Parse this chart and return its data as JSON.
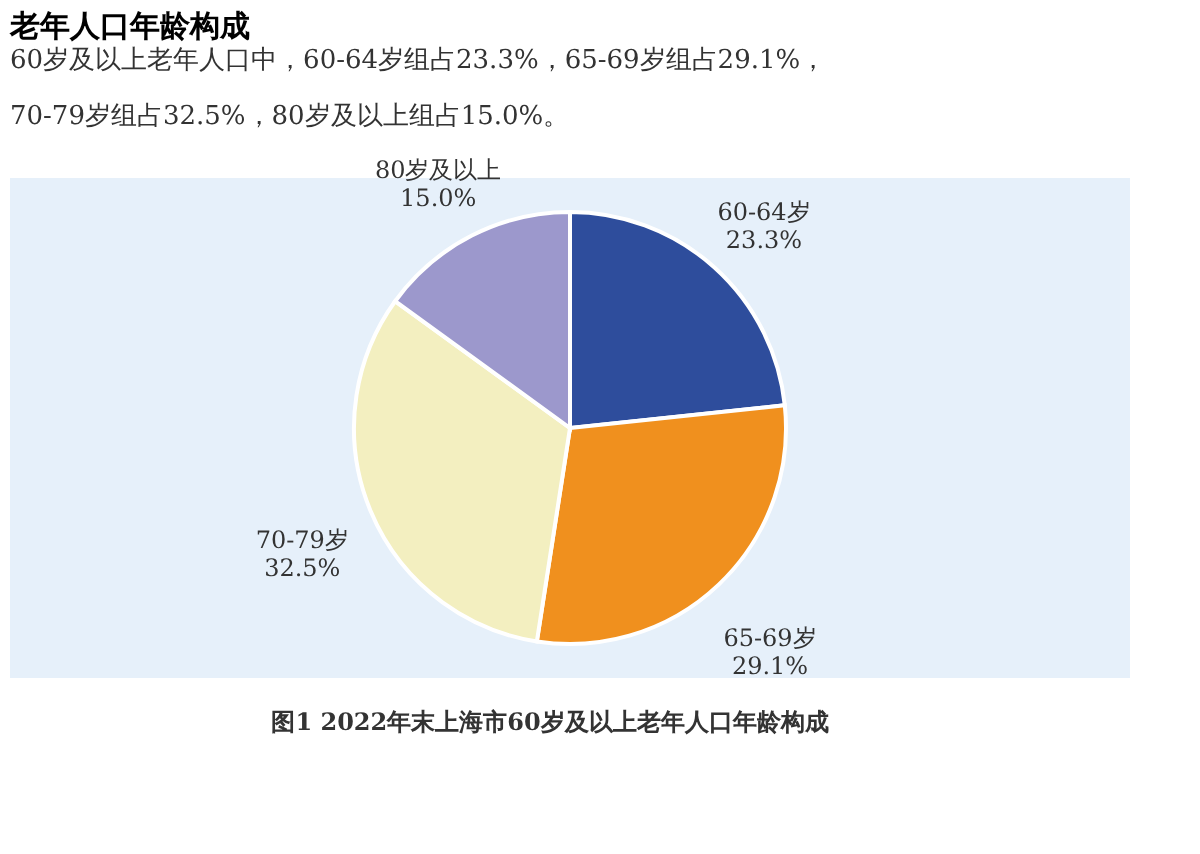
{
  "chart_data": {
    "type": "pie",
    "title": "老年人口年龄构成",
    "subtitle": [
      "60岁及以上老年人口中，60-64岁组占23.3%，65-69岁组占29.1%，",
      "70-79岁组占32.5%，80岁及以上组占15.0%。"
    ],
    "categories": [
      "60-64岁",
      "65-69岁",
      "70-79岁",
      "80岁及以上"
    ],
    "values": [
      23.3,
      29.1,
      32.5,
      15.0
    ],
    "value_labels": [
      "23.3%",
      "29.1%",
      "32.5%",
      "15.0%"
    ],
    "colors": [
      "#2e4d9c",
      "#f0901e",
      "#f3efc0",
      "#9c98cc"
    ],
    "legend": false,
    "annotations": [
      "图1 2022年末上海市60岁及以上老年人口年龄构成"
    ]
  }
}
